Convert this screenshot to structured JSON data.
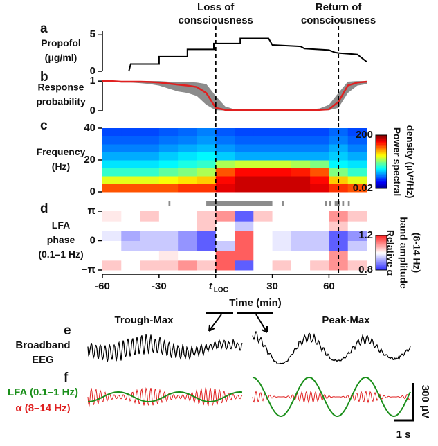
{
  "chart_data": [
    {
      "type": "step",
      "panel": "a",
      "ylabel": [
        "Propofol",
        "(μg/ml)"
      ],
      "x": [
        -46,
        -45,
        -30,
        -30,
        -15,
        -15,
        -1,
        -1,
        13,
        13,
        28,
        30,
        45,
        47,
        60,
        63,
        65,
        75,
        80
      ],
      "values": [
        0,
        1,
        1,
        2,
        2,
        3,
        3,
        3.8,
        3.8,
        4.5,
        4.5,
        3.6,
        3.4,
        3.1,
        2.9,
        2.6,
        2.5,
        2.3,
        1.3
      ],
      "color": "#000000",
      "xlim": [
        -60,
        80
      ],
      "ylim": [
        0,
        5.5
      ],
      "yticks": [
        0,
        5
      ]
    },
    {
      "type": "band-line",
      "panel": "b",
      "ylabel": [
        "Response",
        "probability"
      ],
      "x": [
        -60,
        -55,
        -50,
        -45,
        -40,
        -35,
        -30,
        -25,
        -20,
        -15,
        -10,
        -5,
        0,
        5,
        10,
        15,
        20,
        25,
        30,
        35,
        40,
        45,
        50,
        55,
        60,
        65,
        70,
        75,
        80
      ],
      "values": [
        1,
        1,
        0.98,
        0.98,
        0.98,
        0.97,
        0.95,
        0.92,
        0.88,
        0.85,
        0.8,
        0.6,
        0.1,
        0.03,
        0.02,
        0.02,
        0.02,
        0.02,
        0.02,
        0.02,
        0.02,
        0.02,
        0.02,
        0.03,
        0.05,
        0.3,
        0.85,
        0.95,
        0.98
      ],
      "lower": [
        1,
        1,
        0.95,
        0.95,
        0.93,
        0.9,
        0.85,
        0.75,
        0.65,
        0.6,
        0.5,
        0.2,
        0.02,
        0.01,
        0,
        0,
        0,
        0,
        0,
        0,
        0,
        0,
        0,
        0.01,
        0.02,
        0.1,
        0.6,
        0.85,
        0.9
      ],
      "upper": [
        1,
        1,
        1,
        1,
        1,
        1,
        1,
        0.98,
        0.97,
        0.97,
        0.95,
        0.9,
        0.5,
        0.15,
        0.05,
        0.05,
        0.05,
        0.05,
        0.05,
        0.05,
        0.05,
        0.05,
        0.05,
        0.08,
        0.2,
        0.6,
        0.98,
        1,
        1
      ],
      "color": "#e02020",
      "band_color": "#8c8c8c",
      "xlim": [
        -60,
        80
      ],
      "ylim": [
        0,
        1.05
      ],
      "yticks": [
        0,
        1
      ]
    },
    {
      "type": "heatmap",
      "panel": "c",
      "ylabel": [
        "Frequency",
        "(Hz)"
      ],
      "x": [
        -55,
        -45,
        -35,
        -25,
        -15,
        -5,
        5,
        15,
        25,
        35,
        45,
        55,
        65,
        75
      ],
      "y": [
        2.5,
        7.5,
        12.5,
        17.5,
        22.5,
        27.5,
        32.5,
        37.5
      ],
      "z": [
        [
          30,
          30,
          30,
          30,
          40,
          40,
          80,
          100,
          100,
          100,
          100,
          80,
          40,
          30
        ],
        [
          5,
          5,
          5,
          6,
          8,
          10,
          60,
          100,
          100,
          100,
          100,
          60,
          10,
          5
        ],
        [
          1,
          1,
          1,
          1.5,
          2,
          3,
          30,
          60,
          60,
          60,
          50,
          30,
          2,
          1
        ],
        [
          0.5,
          0.5,
          0.5,
          0.6,
          0.8,
          1,
          3,
          4,
          4,
          4,
          3,
          2,
          0.6,
          0.5
        ],
        [
          0.3,
          0.3,
          0.3,
          0.4,
          0.5,
          0.6,
          0.4,
          0.3,
          0.3,
          0.3,
          0.3,
          0.3,
          0.4,
          0.3
        ],
        [
          0.2,
          0.2,
          0.2,
          0.25,
          0.3,
          0.35,
          0.25,
          0.2,
          0.2,
          0.2,
          0.2,
          0.2,
          0.3,
          0.2
        ],
        [
          0.15,
          0.15,
          0.15,
          0.18,
          0.2,
          0.25,
          0.18,
          0.15,
          0.15,
          0.15,
          0.15,
          0.15,
          0.2,
          0.15
        ],
        [
          0.12,
          0.12,
          0.12,
          0.14,
          0.16,
          0.2,
          0.14,
          0.12,
          0.12,
          0.12,
          0.12,
          0.12,
          0.16,
          0.12
        ]
      ],
      "colormap": "jet",
      "log_color": true,
      "zlim": [
        0.02,
        200
      ],
      "zticks": [
        0.02,
        200
      ],
      "colorbar_label": [
        "Power spectral",
        "density (μV²/Hz)"
      ],
      "xlim": [
        -60,
        80
      ],
      "ylim": [
        0,
        40
      ],
      "yticks": [
        0,
        20,
        40
      ]
    },
    {
      "type": "heatmap",
      "panel": "d",
      "ylabel": [
        "LFA",
        "phase",
        "(0.1–1 Hz)"
      ],
      "x": [
        -55,
        -45,
        -35,
        -25,
        -15,
        -5,
        5,
        15,
        25,
        35,
        45,
        55,
        65,
        75
      ],
      "y": [
        -2.618,
        -1.571,
        -0.524,
        0.524,
        1.571,
        2.618
      ],
      "z": [
        [
          1.05,
          1.0,
          1.05,
          1.05,
          1.1,
          1.05,
          1.15,
          0.85,
          1.0,
          1.05,
          1.0,
          1.05,
          1.1,
          1.05
        ],
        [
          1.0,
          1.0,
          1.0,
          1.02,
          1.0,
          1.0,
          1.15,
          1.15,
          1.0,
          1.0,
          1.0,
          1.0,
          1.1,
          1.0
        ],
        [
          1.0,
          0.95,
          0.95,
          0.95,
          0.9,
          0.85,
          0.95,
          1.15,
          1.0,
          0.98,
          0.95,
          0.95,
          0.85,
          0.95
        ],
        [
          0.98,
          0.92,
          0.95,
          0.95,
          0.9,
          0.85,
          1.0,
          1.15,
          1.0,
          0.98,
          0.95,
          0.95,
          0.85,
          0.9
        ],
        [
          1.0,
          1.0,
          1.0,
          1.0,
          1.0,
          1.05,
          1.0,
          0.95,
          1.0,
          1.0,
          1.0,
          1.0,
          1.05,
          1.0
        ],
        [
          1.02,
          1.0,
          1.05,
          1.0,
          1.0,
          1.05,
          1.1,
          0.85,
          1.05,
          1.0,
          1.0,
          1.0,
          1.1,
          1.05
        ]
      ],
      "significant": [
        [
          -25,
          -24
        ],
        [
          -5,
          10
        ],
        [
          10,
          30
        ],
        [
          35,
          36
        ],
        [
          58,
          59
        ],
        [
          60,
          61
        ],
        [
          63,
          66
        ],
        [
          67,
          68
        ],
        [
          70,
          71
        ]
      ],
      "significant_color": "#8c8c8c",
      "colormap": "bwr",
      "log_color": false,
      "zlim": [
        0.8,
        1.2
      ],
      "zticks": [
        0.8,
        1.2
      ],
      "colorbar_label": [
        "Relative α",
        "band amplitude",
        "(8-14 Hz)"
      ],
      "xlim": [
        -60,
        80
      ],
      "ylim": [
        -3.1416,
        3.1416
      ],
      "yticks": [
        {
          "value": 3.1416,
          "label": "π"
        },
        0,
        {
          "value": -3.1416,
          "label": "−π"
        }
      ],
      "xticks": [
        -60,
        -30,
        {
          "value": 0,
          "label": "t",
          "sub": "LOC"
        },
        30,
        60
      ],
      "xlabel": "Time (min)"
    }
  ],
  "events": [
    {
      "x": 0,
      "label": [
        "Loss of",
        "consciousness"
      ]
    },
    {
      "x": 65,
      "label": [
        "Return of",
        "consciousness"
      ]
    }
  ],
  "traces": {
    "panel_e": "e",
    "panel_f": "f",
    "left_title": "Trough-Max",
    "right_title": "Peak-Max",
    "eeg_label": [
      "Broadband",
      "EEG"
    ],
    "lfa_label": "LFA (0.1–1 Hz)",
    "lfa_color": "#1a8f1a",
    "alpha_label": "α (8–14 Hz)",
    "alpha_color": "#e02020",
    "scale_v": "300 μV",
    "scale_t": "1 s"
  }
}
